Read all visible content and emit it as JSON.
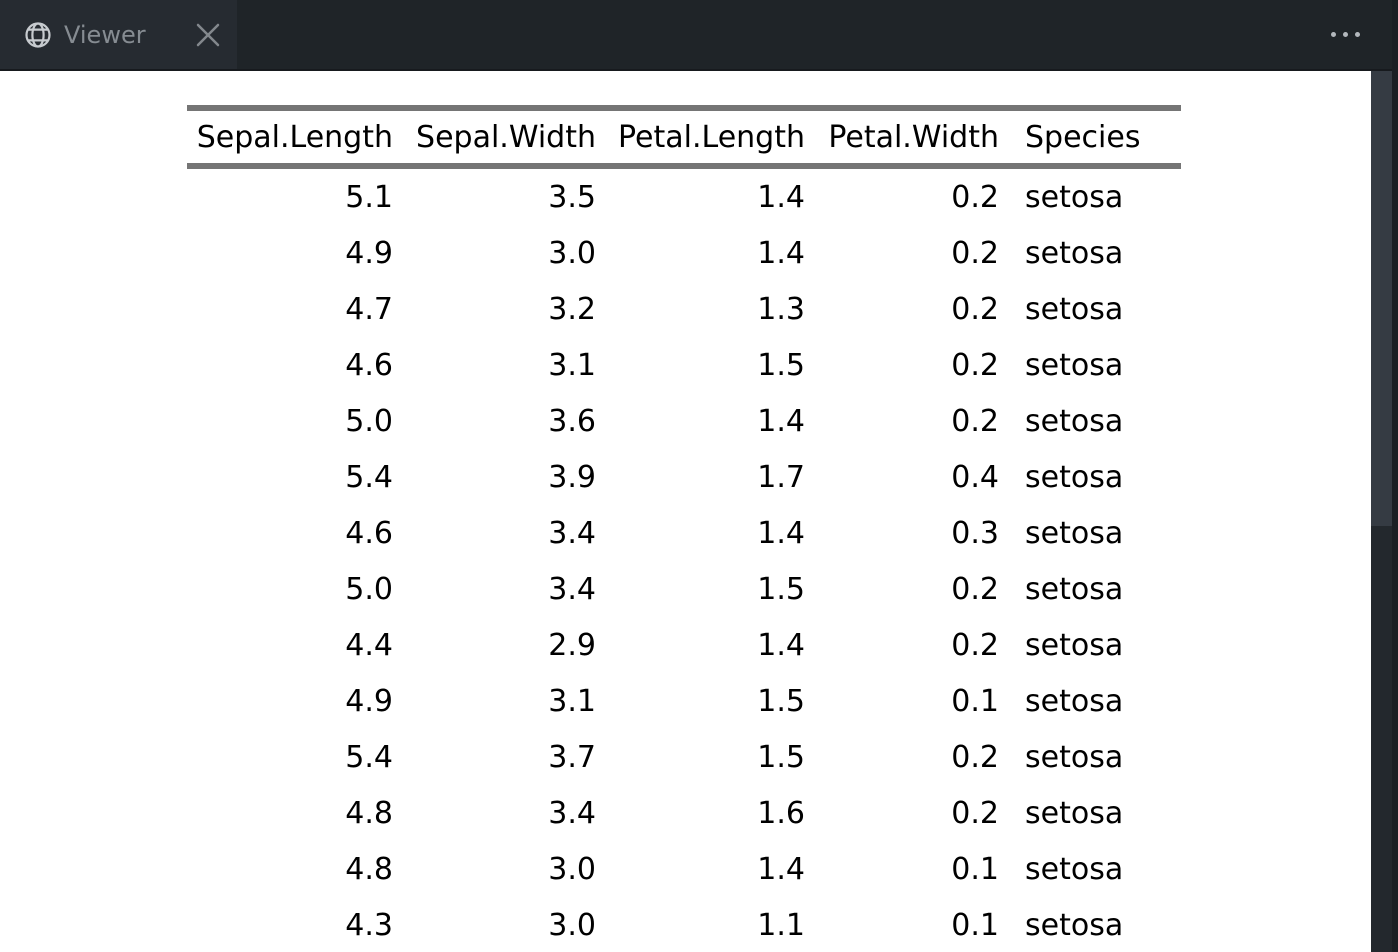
{
  "tabbar": {
    "tab": {
      "label": "Viewer"
    },
    "icons": {
      "globe": "globe-icon",
      "close": "close-icon",
      "menu": "ellipsis-menu-icon"
    }
  },
  "table": {
    "columns": [
      "Sepal.Length",
      "Sepal.Width",
      "Petal.Length",
      "Petal.Width",
      "Species"
    ],
    "rows": [
      [
        "5.1",
        "3.5",
        "1.4",
        "0.2",
        "setosa"
      ],
      [
        "4.9",
        "3.0",
        "1.4",
        "0.2",
        "setosa"
      ],
      [
        "4.7",
        "3.2",
        "1.3",
        "0.2",
        "setosa"
      ],
      [
        "4.6",
        "3.1",
        "1.5",
        "0.2",
        "setosa"
      ],
      [
        "5.0",
        "3.6",
        "1.4",
        "0.2",
        "setosa"
      ],
      [
        "5.4",
        "3.9",
        "1.7",
        "0.4",
        "setosa"
      ],
      [
        "4.6",
        "3.4",
        "1.4",
        "0.3",
        "setosa"
      ],
      [
        "5.0",
        "3.4",
        "1.5",
        "0.2",
        "setosa"
      ],
      [
        "4.4",
        "2.9",
        "1.4",
        "0.2",
        "setosa"
      ],
      [
        "4.9",
        "3.1",
        "1.5",
        "0.1",
        "setosa"
      ],
      [
        "5.4",
        "3.7",
        "1.5",
        "0.2",
        "setosa"
      ],
      [
        "4.8",
        "3.4",
        "1.6",
        "0.2",
        "setosa"
      ],
      [
        "4.8",
        "3.0",
        "1.4",
        "0.1",
        "setosa"
      ],
      [
        "4.3",
        "3.0",
        "1.1",
        "0.1",
        "setosa"
      ]
    ]
  },
  "colors": {
    "tab_bar_bg": "#1f2428",
    "active_tab_bg": "#262b31",
    "tab_label": "#868c92",
    "table_rule": "#757575",
    "scrollbar_thumb": "#353b43",
    "scrollbar_track": "#23282d",
    "right_edge": "#1b1f24",
    "content_bg": "#ffffff"
  }
}
